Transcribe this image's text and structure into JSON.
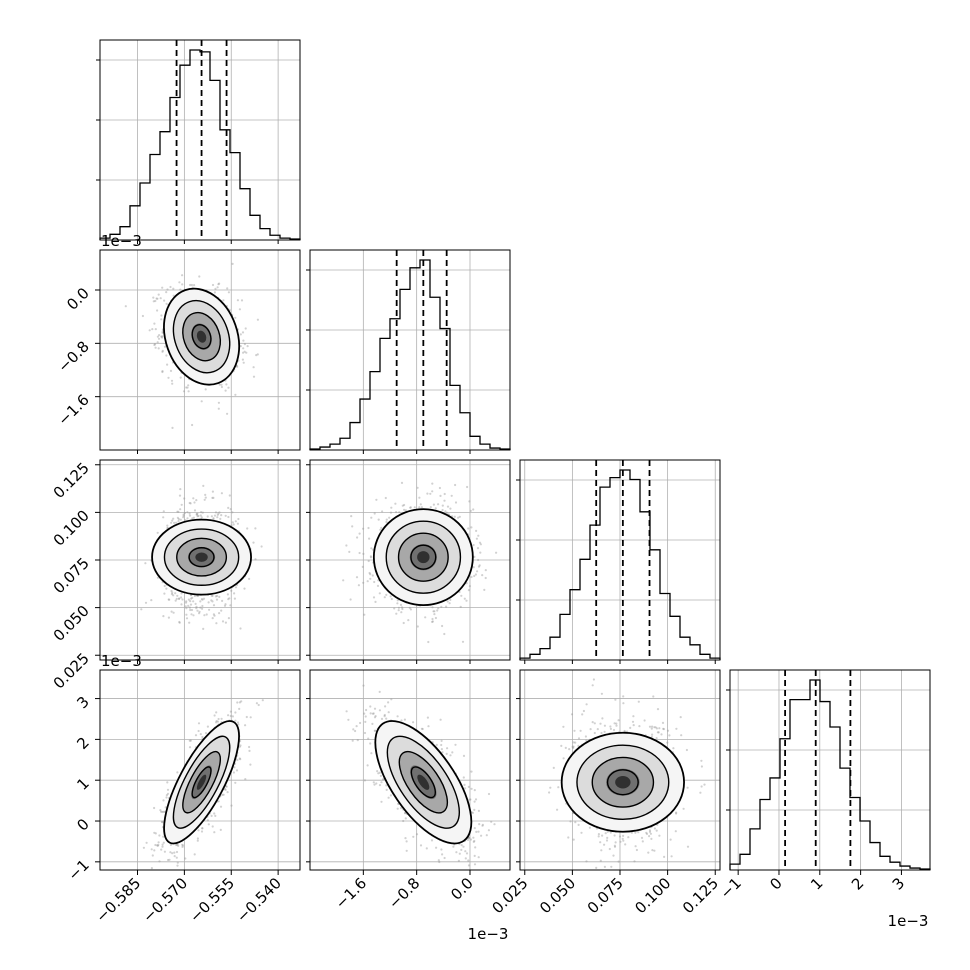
{
  "chart_data": {
    "type": "corner",
    "title": "",
    "grid": true,
    "parameters": [
      {
        "range": [
          -0.597,
          -0.533
        ],
        "ticks": [
          -0.585,
          -0.57,
          -0.555,
          -0.54
        ],
        "tick_labels": [
          "−0.585",
          "−0.570",
          "−0.555",
          "−0.540"
        ],
        "offset_label": "",
        "quantiles": [
          -0.5725,
          -0.5645,
          -0.5565
        ],
        "hist_heights": [
          0.01,
          0.03,
          0.07,
          0.18,
          0.3,
          0.45,
          0.57,
          0.75,
          0.92,
          1.0,
          0.99,
          0.84,
          0.58,
          0.46,
          0.27,
          0.13,
          0.06,
          0.025,
          0.01,
          0.005
        ]
      },
      {
        "range": [
          -2.4,
          0.6
        ],
        "ticks": [
          -1.6,
          -0.8,
          0.0
        ],
        "tick_labels": [
          "−1.6",
          "−0.8",
          "0.0"
        ],
        "offset_label": "1e−3",
        "quantiles": [
          -1.1,
          -0.7,
          -0.35
        ],
        "hist_heights": [
          0.005,
          0.015,
          0.03,
          0.06,
          0.14,
          0.26,
          0.4,
          0.57,
          0.67,
          0.82,
          0.93,
          0.97,
          0.78,
          0.62,
          0.33,
          0.19,
          0.07,
          0.03,
          0.01,
          0.005
        ]
      },
      {
        "range": [
          0.0225,
          0.1275
        ],
        "ticks": [
          0.025,
          0.05,
          0.075,
          0.1,
          0.125
        ],
        "tick_labels": [
          "0.025",
          "0.050",
          "0.075",
          "0.100",
          "0.125"
        ],
        "offset_label": "",
        "quantiles": [
          0.0625,
          0.0765,
          0.0905
        ],
        "hist_heights": [
          0.01,
          0.03,
          0.06,
          0.12,
          0.24,
          0.37,
          0.53,
          0.71,
          0.91,
          0.96,
          1.0,
          0.95,
          0.78,
          0.58,
          0.35,
          0.23,
          0.12,
          0.08,
          0.03,
          0.01
        ]
      },
      {
        "range": [
          -1.2,
          3.7
        ],
        "ticks": [
          -1,
          0,
          1,
          2,
          3
        ],
        "tick_labels": [
          "−1",
          "0",
          "1",
          "2",
          "3"
        ],
        "offset_label": "1e−3",
        "quantiles": [
          0.15,
          0.9,
          1.75
        ],
        "hist_heights": [
          0.03,
          0.08,
          0.21,
          0.36,
          0.47,
          0.67,
          0.87,
          0.87,
          0.97,
          0.86,
          0.73,
          0.52,
          0.37,
          0.25,
          0.14,
          0.07,
          0.04,
          0.02,
          0.01,
          0.005
        ]
      }
    ],
    "pairs": [
      {
        "row": 1,
        "col": 0,
        "center": [
          -0.5645,
          -0.7
        ],
        "sigma": [
          0.006,
          0.36
        ],
        "rho": -0.2
      },
      {
        "row": 2,
        "col": 0,
        "center": [
          -0.5645,
          0.0765
        ],
        "sigma": [
          0.006,
          0.013
        ],
        "rho": 0.0
      },
      {
        "row": 2,
        "col": 1,
        "center": [
          -0.7,
          0.0765
        ],
        "sigma": [
          0.36,
          0.013
        ],
        "rho": 0.0
      },
      {
        "row": 3,
        "col": 0,
        "center": [
          -0.5645,
          0.95
        ],
        "sigma": [
          0.006,
          0.75
        ],
        "rho": 0.75
      },
      {
        "row": 3,
        "col": 1,
        "center": [
          -0.7,
          0.95
        ],
        "sigma": [
          0.36,
          0.75
        ],
        "rho": -0.65
      },
      {
        "row": 3,
        "col": 2,
        "center": [
          0.0765,
          0.95
        ],
        "sigma": [
          0.013,
          0.75
        ],
        "rho": 0.0
      }
    ]
  }
}
